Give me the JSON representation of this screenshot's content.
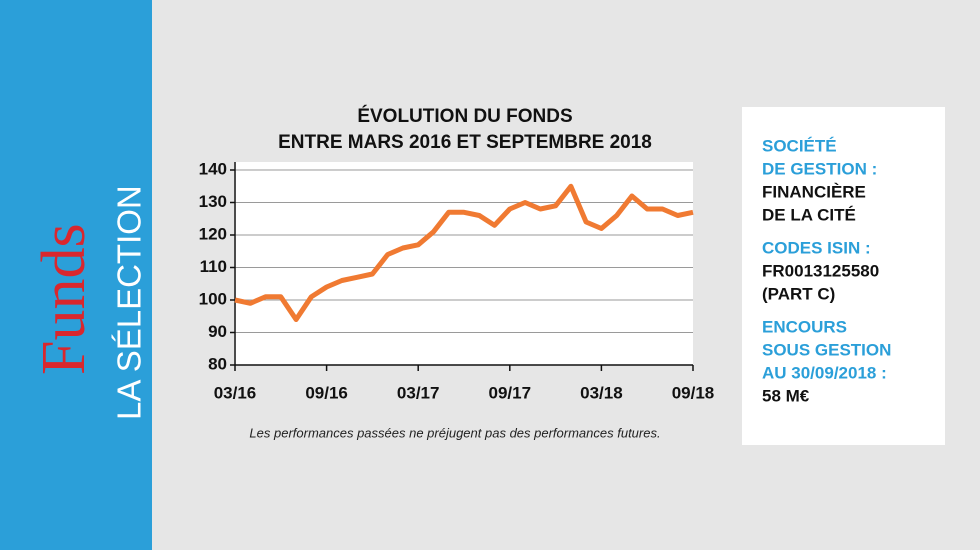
{
  "sidebar": {
    "brand": "Funds",
    "label": "LA SÉLECTION"
  },
  "chart_data": {
    "type": "line",
    "title": [
      "ÉVOLUTION DU FONDS",
      "ENTRE MARS 2016 ET SEPTEMBRE 2018"
    ],
    "note": "Les performances passées ne préjugent pas des performances futures.",
    "x": [
      "03/16",
      "04/16",
      "05/16",
      "06/16",
      "07/16",
      "08/16",
      "09/16",
      "10/16",
      "11/16",
      "12/16",
      "01/17",
      "02/17",
      "03/17",
      "04/17",
      "05/17",
      "06/17",
      "07/17",
      "08/17",
      "09/17",
      "10/17",
      "11/17",
      "12/17",
      "01/18",
      "02/18",
      "03/18",
      "04/18",
      "05/18",
      "06/18",
      "07/18",
      "08/18",
      "09/18"
    ],
    "values": [
      100,
      99,
      101,
      101,
      94,
      101,
      104,
      106,
      107,
      108,
      114,
      116,
      117,
      121,
      127,
      127,
      126,
      123,
      128,
      130,
      128,
      129,
      135,
      124,
      122,
      126,
      132,
      128,
      128,
      126,
      127
    ],
    "color": "#f07a32",
    "xticks": [
      "03/16",
      "09/16",
      "03/17",
      "09/17",
      "03/18",
      "09/18"
    ],
    "ylim": [
      80,
      140
    ],
    "yticks": [
      80,
      90,
      100,
      110,
      120,
      130,
      140
    ],
    "grid": true
  },
  "info": [
    {
      "label": [
        "SOCIÉTÉ",
        "DE GESTION :"
      ],
      "value": [
        "FINANCIÈRE",
        "DE LA CITÉ"
      ]
    },
    {
      "label": [
        "CODES ISIN :"
      ],
      "value": [
        "FR0013125580",
        "(PART C)"
      ]
    },
    {
      "label": [
        "ENCOURS",
        "SOUS GESTION",
        "AU 30/09/2018 :"
      ],
      "value": [
        "58 M€"
      ]
    }
  ]
}
